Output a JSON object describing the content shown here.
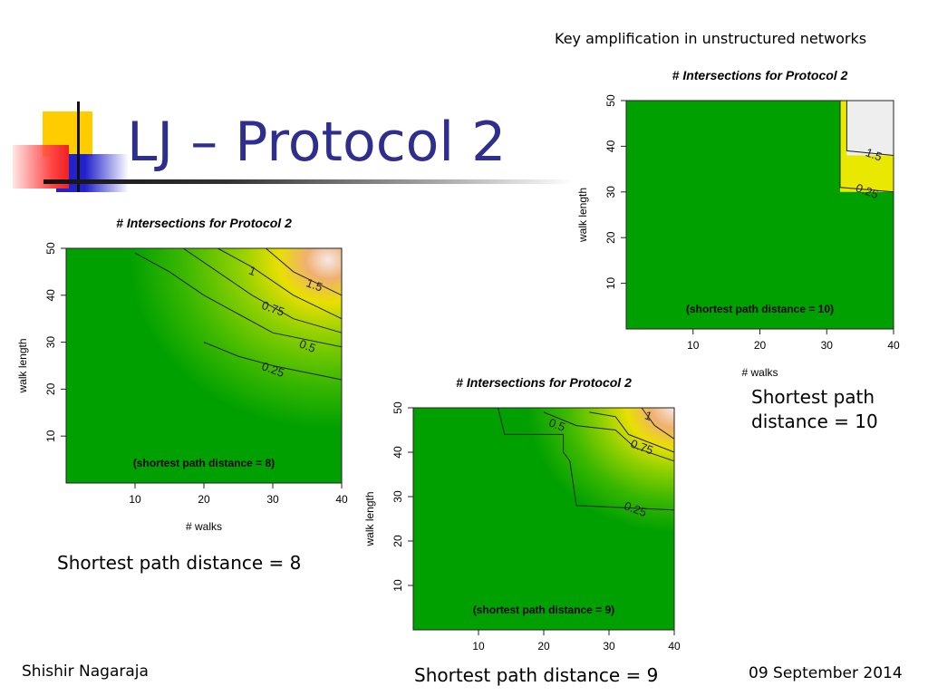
{
  "header": {
    "text": "Key amplification in unstructured networks"
  },
  "slide": {
    "title": "LJ – Protocol 2"
  },
  "captions": {
    "left": "Shortest path distance = 8",
    "middle": "Shortest path distance = 9",
    "right_line1": "Shortest path",
    "right_line2": "distance = 10"
  },
  "footer": {
    "author": "Shishir Nagaraja",
    "date": "09 September 2014"
  },
  "colors": {
    "title": "#2e2e8f",
    "green": "#00a000",
    "yellow": "#e8e800",
    "peak": "#f4e4e4"
  },
  "chart_data": [
    {
      "type": "heatmap",
      "title": "# Intersections for Protocol 2",
      "xlabel": "# walks",
      "ylabel": "walk length",
      "annotation": "(shortest path distance = 8)",
      "xlim": [
        0,
        40
      ],
      "ylim": [
        0,
        50
      ],
      "xticks": [
        "10",
        "20",
        "30",
        "40"
      ],
      "yticks": [
        "10",
        "20",
        "30",
        "40",
        "50"
      ],
      "contours": [
        {
          "level": "0.25",
          "points": [
            [
              20,
              30
            ],
            [
              25,
              27
            ],
            [
              30,
              25
            ],
            [
              40,
              22
            ]
          ]
        },
        {
          "level": "0.5",
          "points": [
            [
              10,
              49
            ],
            [
              15,
              45
            ],
            [
              20,
              40
            ],
            [
              25,
              36
            ],
            [
              30,
              32
            ],
            [
              40,
              29
            ]
          ]
        },
        {
          "level": "0.75",
          "points": [
            [
              17,
              50
            ],
            [
              22,
              45
            ],
            [
              27,
              40
            ],
            [
              33,
              35
            ],
            [
              40,
              32
            ]
          ]
        },
        {
          "level": "1",
          "points": [
            [
              22,
              50
            ],
            [
              27,
              46
            ],
            [
              33,
              40
            ],
            [
              40,
              35
            ]
          ]
        },
        {
          "level": "1.5",
          "points": [
            [
              29,
              50
            ],
            [
              33,
              45
            ],
            [
              40,
              40
            ]
          ]
        }
      ],
      "contour_labels": [
        {
          "text": "0.25",
          "x": 30,
          "y": 24
        },
        {
          "text": "0.5",
          "x": 35,
          "y": 29
        },
        {
          "text": "0.75",
          "x": 30,
          "y": 37
        },
        {
          "text": "1",
          "x": 27,
          "y": 45
        },
        {
          "text": "1.5",
          "x": 36,
          "y": 42
        }
      ]
    },
    {
      "type": "heatmap",
      "title": "# Intersections for Protocol 2",
      "xlabel": "",
      "ylabel": "walk length",
      "annotation": "(shortest path distance = 9)",
      "xlim": [
        0,
        40
      ],
      "ylim": [
        0,
        50
      ],
      "xticks": [
        "10",
        "20",
        "30",
        "40"
      ],
      "yticks": [
        "10",
        "20",
        "30",
        "40",
        "50"
      ],
      "contours": [
        {
          "level": "0.25",
          "points": [
            [
              13,
              50
            ],
            [
              14,
              44
            ],
            [
              23,
              44
            ],
            [
              23,
              40
            ],
            [
              24,
              38
            ],
            [
              25,
              28
            ],
            [
              40,
              27
            ]
          ]
        },
        {
          "level": "0.5",
          "points": [
            [
              20,
              49
            ],
            [
              25,
              46
            ],
            [
              31,
              45
            ],
            [
              34,
              41
            ],
            [
              40,
              38
            ]
          ]
        },
        {
          "level": "0.75",
          "points": [
            [
              27,
              49
            ],
            [
              31,
              48
            ],
            [
              33,
              44
            ],
            [
              40,
              40
            ]
          ]
        },
        {
          "level": "1",
          "points": [
            [
              35,
              50
            ],
            [
              37,
              46
            ],
            [
              40,
              43
            ]
          ]
        }
      ],
      "contour_labels": [
        {
          "text": "0.25",
          "x": 34,
          "y": 27
        },
        {
          "text": "0.5",
          "x": 22,
          "y": 46
        },
        {
          "text": "0.75",
          "x": 35,
          "y": 41
        },
        {
          "text": "1",
          "x": 36,
          "y": 48
        }
      ]
    },
    {
      "type": "heatmap",
      "title": "# Intersections for Protocol 2",
      "xlabel": "# walks",
      "ylabel": "walk length",
      "annotation": "(shortest path distance = 10)",
      "xlim": [
        0,
        40
      ],
      "ylim": [
        0,
        50
      ],
      "xticks": [
        "10",
        "20",
        "30",
        "40"
      ],
      "yticks": [
        "10",
        "20",
        "30",
        "40",
        "50"
      ],
      "contours": [
        {
          "level": "0.25",
          "points": [
            [
              32,
              50
            ],
            [
              32,
              31
            ],
            [
              40,
              30
            ]
          ]
        },
        {
          "level": "1.5",
          "points": [
            [
              33,
              50
            ],
            [
              33,
              39
            ],
            [
              40,
              38
            ]
          ]
        }
      ],
      "contour_labels": [
        {
          "text": "1.5",
          "x": 37,
          "y": 38
        },
        {
          "text": "0.25",
          "x": 36,
          "y": 30
        }
      ]
    }
  ]
}
